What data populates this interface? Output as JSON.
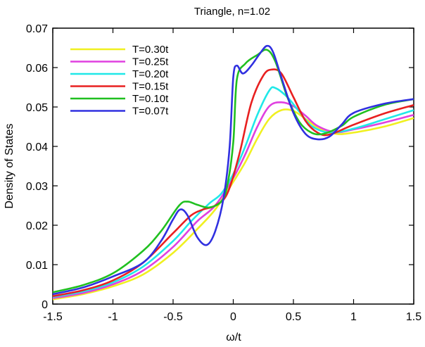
{
  "chart_data": {
    "type": "line",
    "title": "Triangle, n=1.02",
    "xlabel": "ω/t",
    "ylabel": "Density of States",
    "xlim": [
      -1.5,
      1.5
    ],
    "ylim": [
      0,
      0.07
    ],
    "x_ticks": [
      -1.5,
      -1,
      -0.5,
      0,
      0.5,
      1,
      1.5
    ],
    "x_tick_labels": [
      "-1.5",
      "-1",
      "-0.5",
      "0",
      "0.5",
      "1",
      "1.5"
    ],
    "y_ticks": [
      0,
      0.01,
      0.02,
      0.03,
      0.04,
      0.05,
      0.06,
      0.07
    ],
    "y_tick_labels": [
      "0",
      "0.01",
      "0.02",
      "0.03",
      "0.04",
      "0.05",
      "0.06",
      "0.07"
    ],
    "grid": false,
    "legend_position": "top-left",
    "series": [
      {
        "name": "T=0.30t",
        "color": "#f0f020",
        "points": [
          [
            -1.5,
            0.0012
          ],
          [
            -1.25,
            0.0025
          ],
          [
            -1.0,
            0.0045
          ],
          [
            -0.75,
            0.0075
          ],
          [
            -0.5,
            0.013
          ],
          [
            -0.3,
            0.019
          ],
          [
            -0.15,
            0.024
          ],
          [
            0.0,
            0.031
          ],
          [
            0.1,
            0.036
          ],
          [
            0.2,
            0.042
          ],
          [
            0.3,
            0.047
          ],
          [
            0.4,
            0.0492
          ],
          [
            0.5,
            0.049
          ],
          [
            0.6,
            0.047
          ],
          [
            0.7,
            0.0448
          ],
          [
            0.85,
            0.0432
          ],
          [
            1.0,
            0.0435
          ],
          [
            1.25,
            0.045
          ],
          [
            1.5,
            0.0472
          ]
        ]
      },
      {
        "name": "T=0.25t",
        "color": "#e040e0",
        "points": [
          [
            -1.5,
            0.0015
          ],
          [
            -1.25,
            0.0028
          ],
          [
            -1.0,
            0.005
          ],
          [
            -0.75,
            0.0085
          ],
          [
            -0.5,
            0.0145
          ],
          [
            -0.3,
            0.021
          ],
          [
            -0.15,
            0.025
          ],
          [
            0.0,
            0.032
          ],
          [
            0.1,
            0.038
          ],
          [
            0.2,
            0.045
          ],
          [
            0.3,
            0.0502
          ],
          [
            0.4,
            0.0512
          ],
          [
            0.5,
            0.0502
          ],
          [
            0.6,
            0.0478
          ],
          [
            0.7,
            0.0452
          ],
          [
            0.85,
            0.0436
          ],
          [
            1.0,
            0.0443
          ],
          [
            1.25,
            0.046
          ],
          [
            1.5,
            0.048
          ]
        ]
      },
      {
        "name": "T=0.20t",
        "color": "#20e8e8",
        "points": [
          [
            -1.5,
            0.0018
          ],
          [
            -1.25,
            0.0032
          ],
          [
            -1.0,
            0.0055
          ],
          [
            -0.75,
            0.0095
          ],
          [
            -0.5,
            0.016
          ],
          [
            -0.35,
            0.021
          ],
          [
            -0.2,
            0.0255
          ],
          [
            -0.1,
            0.028
          ],
          [
            0.0,
            0.033
          ],
          [
            0.1,
            0.04
          ],
          [
            0.2,
            0.048
          ],
          [
            0.3,
            0.0542
          ],
          [
            0.35,
            0.0548
          ],
          [
            0.45,
            0.0525
          ],
          [
            0.55,
            0.0488
          ],
          [
            0.65,
            0.0452
          ],
          [
            0.8,
            0.0435
          ],
          [
            1.0,
            0.0445
          ],
          [
            1.25,
            0.0468
          ],
          [
            1.5,
            0.0492
          ]
        ]
      },
      {
        "name": "T=0.15t",
        "color": "#e82020",
        "points": [
          [
            -1.5,
            0.002
          ],
          [
            -1.25,
            0.0035
          ],
          [
            -1.0,
            0.006
          ],
          [
            -0.75,
            0.0105
          ],
          [
            -0.5,
            0.018
          ],
          [
            -0.35,
            0.0225
          ],
          [
            -0.25,
            0.024
          ],
          [
            -0.15,
            0.025
          ],
          [
            -0.05,
            0.028
          ],
          [
            0.05,
            0.038
          ],
          [
            0.15,
            0.051
          ],
          [
            0.25,
            0.058
          ],
          [
            0.32,
            0.0595
          ],
          [
            0.4,
            0.0585
          ],
          [
            0.5,
            0.0525
          ],
          [
            0.6,
            0.0465
          ],
          [
            0.7,
            0.0435
          ],
          [
            0.8,
            0.043
          ],
          [
            1.0,
            0.0455
          ],
          [
            1.25,
            0.0483
          ],
          [
            1.5,
            0.0505
          ]
        ]
      },
      {
        "name": "T=0.10t",
        "color": "#20c020",
        "points": [
          [
            -1.5,
            0.003
          ],
          [
            -1.25,
            0.0048
          ],
          [
            -1.0,
            0.0078
          ],
          [
            -0.75,
            0.0135
          ],
          [
            -0.6,
            0.0185
          ],
          [
            -0.45,
            0.025
          ],
          [
            -0.38,
            0.026
          ],
          [
            -0.3,
            0.0252
          ],
          [
            -0.2,
            0.0245
          ],
          [
            -0.1,
            0.026
          ],
          [
            -0.05,
            0.03
          ],
          [
            0.0,
            0.041
          ],
          [
            0.03,
            0.057
          ],
          [
            0.1,
            0.061
          ],
          [
            0.2,
            0.0632
          ],
          [
            0.28,
            0.0645
          ],
          [
            0.35,
            0.0615
          ],
          [
            0.45,
            0.0525
          ],
          [
            0.55,
            0.0462
          ],
          [
            0.65,
            0.0435
          ],
          [
            0.75,
            0.0432
          ],
          [
            0.9,
            0.0452
          ],
          [
            1.0,
            0.0475
          ],
          [
            1.25,
            0.0505
          ],
          [
            1.5,
            0.052
          ]
        ]
      },
      {
        "name": "T=0.07t",
        "color": "#3030e0",
        "points": [
          [
            -1.5,
            0.0025
          ],
          [
            -1.25,
            0.0042
          ],
          [
            -1.0,
            0.007
          ],
          [
            -0.75,
            0.0105
          ],
          [
            -0.6,
            0.016
          ],
          [
            -0.5,
            0.0215
          ],
          [
            -0.44,
            0.024
          ],
          [
            -0.38,
            0.0225
          ],
          [
            -0.3,
            0.017
          ],
          [
            -0.22,
            0.015
          ],
          [
            -0.15,
            0.0185
          ],
          [
            -0.08,
            0.027
          ],
          [
            -0.03,
            0.04
          ],
          [
            0.0,
            0.0575
          ],
          [
            0.03,
            0.0605
          ],
          [
            0.08,
            0.0585
          ],
          [
            0.15,
            0.0605
          ],
          [
            0.22,
            0.0635
          ],
          [
            0.28,
            0.0655
          ],
          [
            0.33,
            0.064
          ],
          [
            0.4,
            0.0575
          ],
          [
            0.5,
            0.0485
          ],
          [
            0.6,
            0.0432
          ],
          [
            0.7,
            0.0418
          ],
          [
            0.8,
            0.0425
          ],
          [
            0.9,
            0.0455
          ],
          [
            1.0,
            0.0485
          ],
          [
            1.25,
            0.0508
          ],
          [
            1.5,
            0.052
          ]
        ]
      }
    ]
  }
}
